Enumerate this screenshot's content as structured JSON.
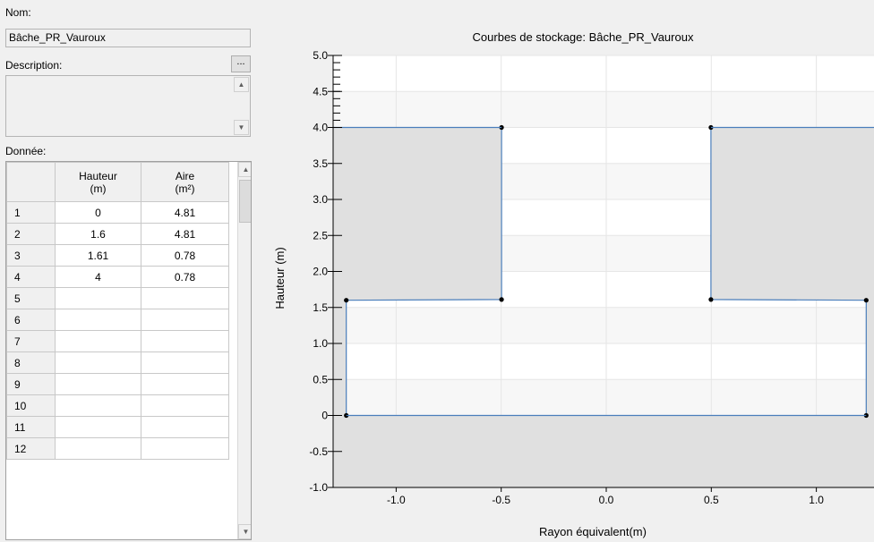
{
  "form": {
    "name_label": "Nom:",
    "name_value": "Bâche_PR_Vauroux",
    "description_label": "Description:",
    "description_button": "...",
    "description_value": "",
    "data_label": "Donnée:"
  },
  "grid": {
    "headers": {
      "col1_line1": "Hauteur",
      "col1_line2": "(m)",
      "col2_line1": "Aire",
      "col2_line2": "(m²)"
    },
    "rows": [
      {
        "num": "1",
        "hauteur": "0",
        "aire": "4.81"
      },
      {
        "num": "2",
        "hauteur": "1.6",
        "aire": "4.81"
      },
      {
        "num": "3",
        "hauteur": "1.61",
        "aire": "0.78"
      },
      {
        "num": "4",
        "hauteur": "4",
        "aire": "0.78"
      },
      {
        "num": "5",
        "hauteur": "",
        "aire": ""
      },
      {
        "num": "6",
        "hauteur": "",
        "aire": ""
      },
      {
        "num": "7",
        "hauteur": "",
        "aire": ""
      },
      {
        "num": "8",
        "hauteur": "",
        "aire": ""
      },
      {
        "num": "9",
        "hauteur": "",
        "aire": ""
      },
      {
        "num": "10",
        "hauteur": "",
        "aire": ""
      },
      {
        "num": "11",
        "hauteur": "",
        "aire": ""
      },
      {
        "num": "12",
        "hauteur": "",
        "aire": ""
      }
    ],
    "scroll_up_icon": "scroll-up-arrow-icon",
    "scroll_down_icon": "scroll-down-arrow-icon"
  },
  "chart_data": {
    "type": "line",
    "title": "Courbes de stockage: Bâche_PR_Vauroux",
    "xlabel": "Rayon équivalent(m)",
    "ylabel": "Hauteur (m)",
    "xlim": [
      -1.3,
      1.3
    ],
    "ylim": [
      -1.0,
      5.0
    ],
    "xticks": [
      "-1.0",
      "-0.5",
      "0.0",
      "0.5",
      "1.0"
    ],
    "xtick_values": [
      -1.0,
      -0.5,
      0.0,
      0.5,
      1.0
    ],
    "yticks": [
      "5.0",
      "4.5",
      "4.0",
      "3.5",
      "3.0",
      "2.5",
      "2.0",
      "1.5",
      "1.0",
      "0.5",
      "0",
      "-0.5",
      "-1.0"
    ],
    "ytick_values": [
      5.0,
      4.5,
      4.0,
      3.5,
      3.0,
      2.5,
      2.0,
      1.5,
      1.0,
      0.5,
      0.0,
      -0.5,
      -1.0
    ],
    "grid": true,
    "series": [
      {
        "points": [
          [
            -1.2374,
            0
          ],
          [
            -1.2374,
            1.6
          ],
          [
            -0.4983,
            1.61
          ],
          [
            -0.4983,
            4.0
          ]
        ]
      },
      {
        "points": [
          [
            1.2374,
            0
          ],
          [
            1.2374,
            1.6
          ],
          [
            0.4983,
            1.61
          ],
          [
            0.4983,
            4.0
          ]
        ]
      }
    ],
    "colors": {
      "line": "#4a7ebb",
      "marker": "#000000",
      "fill": "#e0e0e0",
      "plot_bg": "#ffffff",
      "band": "#f7f7f7"
    }
  }
}
